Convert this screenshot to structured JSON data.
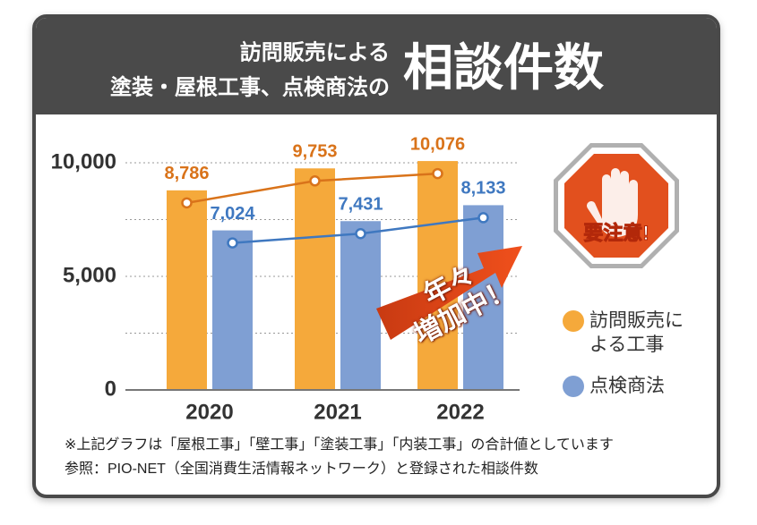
{
  "header": {
    "line1": "訪問販売による",
    "line2": "塗装・屋根工事、点検商法の",
    "big": "相談件数"
  },
  "chart_data": {
    "type": "bar",
    "categories": [
      "2020",
      "2021",
      "2022"
    ],
    "series": [
      {
        "name": "訪問販売による工事",
        "color": "#F5A93B",
        "line_color": "#D9731A",
        "values": [
          8786,
          9753,
          10076
        ],
        "value_labels": [
          "8,786",
          "9,753",
          "10,076"
        ]
      },
      {
        "name": "点検商法",
        "color": "#7F9FD3",
        "line_color": "#3F78C0",
        "values": [
          7024,
          7431,
          8133
        ],
        "value_labels": [
          "7,024",
          "7,431",
          "8,133"
        ]
      }
    ],
    "ylim": [
      0,
      10000
    ],
    "yticks": [
      0,
      {
        "value": 5000,
        "label": "5,000"
      },
      {
        "value": 10000,
        "label": "10,000"
      }
    ],
    "ygrid": [
      2500,
      5000,
      7500,
      10000
    ],
    "grid": true,
    "legend": "right",
    "annotation_lines": [
      "年々",
      "増加中！"
    ],
    "sign": "要注意!"
  },
  "notes": [
    "※上記グラフは「屋根工事」「壁工事」「塗装工事」「内装工事」の合計値としています",
    "参照：PIO-NET（全国消費生活情報ネットワーク）と登録された相談件数"
  ]
}
